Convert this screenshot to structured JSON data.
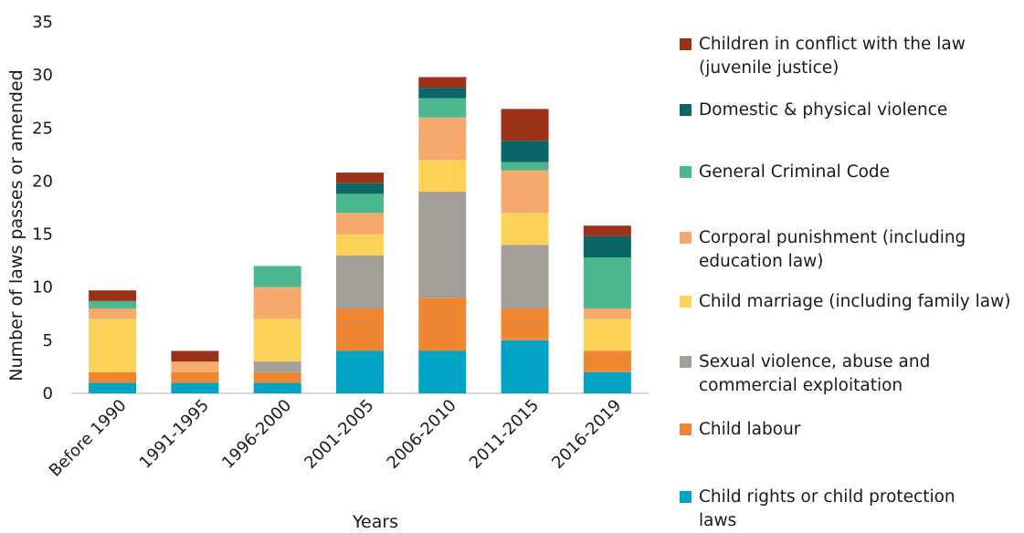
{
  "chart_data": {
    "type": "bar",
    "stacked": true,
    "title": "",
    "xlabel": "Years",
    "ylabel": "Number of laws passes or amended",
    "ylim": [
      0,
      35
    ],
    "yticks": [
      "0",
      "5",
      "10",
      "15",
      "20",
      "25",
      "30",
      "35"
    ],
    "grid": false,
    "legend_position": "right",
    "categories": [
      "Before 1990",
      "1991-1995",
      "1996-2000",
      "2001-2005",
      "2006-2010",
      "2011-2015",
      "2016-2019"
    ],
    "series": [
      {
        "name": "Child rights or child protection laws",
        "color": "#00a3c4",
        "values": [
          1,
          1,
          1,
          4,
          4,
          5,
          2
        ]
      },
      {
        "name": "Child labour",
        "color": "#ef8632",
        "values": [
          1,
          1,
          1,
          4,
          5,
          3,
          2
        ]
      },
      {
        "name": "Sexual violence, abuse and commercial exploitation",
        "color": "#a59f9a",
        "values": [
          0,
          0,
          1,
          5,
          10,
          6,
          0
        ]
      },
      {
        "name": "Child marriage (including family law)",
        "color": "#fdd258",
        "values": [
          5,
          0,
          4,
          2,
          3,
          3,
          3
        ]
      },
      {
        "name": "Corporal punishment (including education law)",
        "color": "#f6a96c",
        "values": [
          1,
          1,
          3,
          2,
          4,
          4,
          1
        ]
      },
      {
        "name": "General Criminal Code",
        "color": "#4db78f",
        "values": [
          0.7,
          0,
          2,
          1.8,
          1.8,
          0.8,
          4.8
        ]
      },
      {
        "name": "Domestic & physical violence",
        "color": "#0b6767",
        "values": [
          0,
          0,
          0,
          1,
          1,
          2,
          2
        ]
      },
      {
        "name": "Children in conflict with the law (juvenile justice)",
        "color": "#9a3118",
        "values": [
          1,
          1,
          0,
          1,
          1,
          3,
          1
        ]
      }
    ]
  },
  "legend": [
    {
      "label": "Children in conflict with the law\n(juvenile justice)",
      "color": "#9a3118"
    },
    {
      "label": "Domestic & physical violence",
      "color": "#0b6767"
    },
    {
      "label": "General Criminal Code",
      "color": "#4db78f"
    },
    {
      "label": "Corporal punishment (including\neducation law)",
      "color": "#f6a96c"
    },
    {
      "label": "Child marriage (including family law)",
      "color": "#fdd258"
    },
    {
      "label": "Sexual violence, abuse and\ncommercial exploitation",
      "color": "#a59f9a"
    },
    {
      "label": "Child labour",
      "color": "#ef8632"
    },
    {
      "label": "Child rights or child protection\nlaws",
      "color": "#00a3c4"
    }
  ]
}
